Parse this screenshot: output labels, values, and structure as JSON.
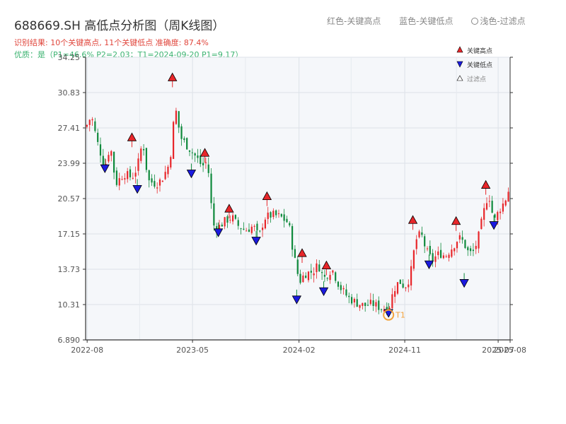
{
  "header": {
    "title": "688669.SH 高低点分析图（周K线图）",
    "result_line": "识别结果: 10个关键高点, 11个关键低点  准确度: 87.4%",
    "quality_line": "优质：是（P1=46.6%  P2=2.03；T1=2024-09-20 P1=9.17）"
  },
  "top_legend": {
    "red": "红色-关键高点",
    "blue": "蓝色-关键低点",
    "light": "浅色-过滤点"
  },
  "colors": {
    "up": "#e8262a",
    "down": "#0f8a3c",
    "high_marker": "#e8262a",
    "low_marker": "#1a1adf",
    "t1": "#f2a23a",
    "plot_bg": "#f5f7fa"
  },
  "chart_data": {
    "type": "candlestick",
    "title": "688669.SH 高低点分析图（周K线图）",
    "ylim": [
      6.89,
      34.25
    ],
    "y_ticks": [
      "6.890",
      "10.31",
      "13.73",
      "17.15",
      "20.57",
      "23.99",
      "27.41",
      "30.83",
      "34.25"
    ],
    "x_ticks": [
      "2022-08",
      "2023-05",
      "2024-02",
      "2024-11",
      "2025-07",
      "2025-08"
    ],
    "x_tick_dates": [
      "2022-08-01",
      "2023-05-01",
      "2024-02-01",
      "2024-11-01",
      "2025-07-01",
      "2025-08-01"
    ],
    "xlim": [
      "2022-07-28",
      "2025-08-01"
    ],
    "grid": true,
    "legend": {
      "position": "top-right",
      "entries": [
        {
          "label": "关键高点",
          "marker": "triangle-up"
        },
        {
          "label": "关键低点",
          "marker": "triangle-down"
        },
        {
          "label": "过滤点",
          "marker": "triangle-up-hollow"
        }
      ]
    },
    "close_path": [
      [
        "2022-07-29",
        27.5
      ],
      [
        "2022-08-12",
        28.6
      ],
      [
        "2022-08-26",
        26.2
      ],
      [
        "2022-09-16",
        23.6
      ],
      [
        "2022-09-30",
        25.8
      ],
      [
        "2022-10-14",
        22.0
      ],
      [
        "2022-11-04",
        23.0
      ],
      [
        "2022-11-25",
        22.6
      ],
      [
        "2022-12-09",
        23.6
      ],
      [
        "2022-12-23",
        26.2
      ],
      [
        "2023-01-06",
        22.3
      ],
      [
        "2023-01-27",
        22.0
      ],
      [
        "2023-02-10",
        22.4
      ],
      [
        "2023-03-03",
        24.0
      ],
      [
        "2023-03-17",
        29.5
      ],
      [
        "2023-03-31",
        26.5
      ],
      [
        "2023-04-21",
        25.5
      ],
      [
        "2023-05-12",
        24.5
      ],
      [
        "2023-05-26",
        23.7
      ],
      [
        "2023-06-09",
        24.2
      ],
      [
        "2023-06-23",
        18.0
      ],
      [
        "2023-07-07",
        17.8
      ],
      [
        "2023-07-21",
        18.3
      ],
      [
        "2023-08-11",
        18.8
      ],
      [
        "2023-08-25",
        18.0
      ],
      [
        "2023-09-15",
        17.5
      ],
      [
        "2023-10-06",
        17.9
      ],
      [
        "2023-10-20",
        16.8
      ],
      [
        "2023-11-03",
        18.7
      ],
      [
        "2023-11-24",
        19.0
      ],
      [
        "2023-12-15",
        18.8
      ],
      [
        "2024-01-05",
        18.2
      ],
      [
        "2024-01-19",
        15.0
      ],
      [
        "2024-02-02",
        12.5
      ],
      [
        "2024-02-16",
        13.3
      ],
      [
        "2024-03-08",
        13.5
      ],
      [
        "2024-03-22",
        14.2
      ],
      [
        "2024-04-05",
        12.8
      ],
      [
        "2024-04-26",
        13.8
      ],
      [
        "2024-05-17",
        12.0
      ],
      [
        "2024-06-07",
        11.0
      ],
      [
        "2024-06-28",
        10.5
      ],
      [
        "2024-07-19",
        10.2
      ],
      [
        "2024-08-09",
        10.4
      ],
      [
        "2024-08-30",
        10.0
      ],
      [
        "2024-09-20",
        9.9
      ],
      [
        "2024-10-04",
        11.8
      ],
      [
        "2024-10-18",
        12.6
      ],
      [
        "2024-11-01",
        12.0
      ],
      [
        "2024-11-15",
        13.0
      ],
      [
        "2024-11-29",
        16.5
      ],
      [
        "2024-12-13",
        17.2
      ],
      [
        "2024-12-27",
        15.5
      ],
      [
        "2025-01-10",
        14.6
      ],
      [
        "2025-01-31",
        15.3
      ],
      [
        "2025-02-14",
        15.0
      ],
      [
        "2025-03-07",
        16.0
      ],
      [
        "2025-03-21",
        16.8
      ],
      [
        "2025-04-04",
        16.3
      ],
      [
        "2025-04-11",
        15.5
      ],
      [
        "2025-04-25",
        15.2
      ],
      [
        "2025-05-09",
        16.5
      ],
      [
        "2025-05-23",
        19.0
      ],
      [
        "2025-06-06",
        21.2
      ],
      [
        "2025-06-20",
        18.3
      ],
      [
        "2025-07-04",
        19.5
      ],
      [
        "2025-07-18",
        20.3
      ],
      [
        "2025-08-01",
        21.8
      ]
    ],
    "highs": [
      {
        "date": "2022-11-25",
        "value": 26.5
      },
      {
        "date": "2023-03-10",
        "value": 32.3
      },
      {
        "date": "2023-06-02",
        "value": 25.0
      },
      {
        "date": "2023-08-04",
        "value": 19.6
      },
      {
        "date": "2023-11-10",
        "value": 20.8
      },
      {
        "date": "2024-02-09",
        "value": 15.3
      },
      {
        "date": "2024-04-12",
        "value": 14.1
      },
      {
        "date": "2024-11-22",
        "value": 18.5
      },
      {
        "date": "2025-03-14",
        "value": 18.4
      },
      {
        "date": "2025-05-30",
        "value": 21.9
      }
    ],
    "lows": [
      {
        "date": "2022-09-16",
        "value": 23.5
      },
      {
        "date": "2022-12-09",
        "value": 21.5
      },
      {
        "date": "2023-04-28",
        "value": 23.0
      },
      {
        "date": "2023-07-07",
        "value": 17.3
      },
      {
        "date": "2023-10-13",
        "value": 16.5
      },
      {
        "date": "2024-01-26",
        "value": 10.8
      },
      {
        "date": "2024-04-05",
        "value": 11.6
      },
      {
        "date": "2024-09-20",
        "value": 9.5
      },
      {
        "date": "2025-01-03",
        "value": 14.2
      },
      {
        "date": "2025-04-04",
        "value": 12.4
      },
      {
        "date": "2025-06-20",
        "value": 18.0
      }
    ],
    "t1": {
      "label": "T1",
      "date": "2024-09-20",
      "value": 9.17
    }
  }
}
